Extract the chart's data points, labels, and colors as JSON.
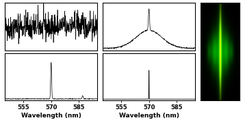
{
  "wavelength_min": 545,
  "wavelength_max": 595,
  "peak_wavelength": 570,
  "xlabel": "Wavelength (nm)",
  "xticks": [
    555,
    570,
    585
  ],
  "background_color": "#ffffff",
  "noise_seed": 42,
  "panel_linecolor": "black",
  "panel_linewidth": 0.8
}
